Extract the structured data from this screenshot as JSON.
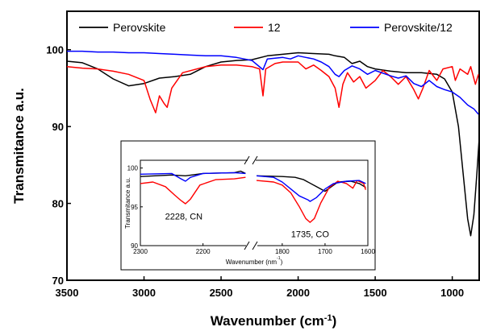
{
  "chart_data": [
    {
      "type": "line",
      "xlabel": "Wavenumber (cm⁻¹)",
      "ylabel": "Transmitance a.u.",
      "xlim": [
        3500,
        820
      ],
      "ylim": [
        70,
        105
      ],
      "xticks": [
        3500,
        3000,
        2500,
        2000,
        1500,
        1000
      ],
      "yticks": [
        70,
        80,
        90,
        100
      ],
      "legend_position": "top",
      "series": [
        {
          "name": "Perovskite",
          "color": "#000000",
          "points": [
            [
              3500,
              98.5
            ],
            [
              3400,
              98.3
            ],
            [
              3300,
              97.5
            ],
            [
              3200,
              96.2
            ],
            [
              3100,
              95.3
            ],
            [
              3000,
              95.6
            ],
            [
              2900,
              96.3
            ],
            [
              2800,
              96.5
            ],
            [
              2700,
              96.8
            ],
            [
              2600,
              97.8
            ],
            [
              2500,
              98.4
            ],
            [
              2400,
              98.6
            ],
            [
              2300,
              98.7
            ],
            [
              2200,
              99.2
            ],
            [
              2100,
              99.4
            ],
            [
              2000,
              99.6
            ],
            [
              1900,
              99.5
            ],
            [
              1800,
              99.4
            ],
            [
              1760,
              99.2
            ],
            [
              1700,
              99.0
            ],
            [
              1650,
              98.2
            ],
            [
              1600,
              98.5
            ],
            [
              1550,
              97.8
            ],
            [
              1500,
              97.5
            ],
            [
              1400,
              97.2
            ],
            [
              1300,
              97.0
            ],
            [
              1200,
              97.0
            ],
            [
              1100,
              96.8
            ],
            [
              1050,
              96.2
            ],
            [
              1000,
              94.5
            ],
            [
              960,
              90.0
            ],
            [
              930,
              84.0
            ],
            [
              900,
              78.0
            ],
            [
              880,
              75.8
            ],
            [
              860,
              78.5
            ],
            [
              840,
              84.0
            ],
            [
              825,
              88.5
            ]
          ]
        },
        {
          "name": "12",
          "color": "#ff0000",
          "points": [
            [
              3500,
              97.8
            ],
            [
              3400,
              97.6
            ],
            [
              3300,
              97.5
            ],
            [
              3200,
              97.2
            ],
            [
              3100,
              96.8
            ],
            [
              3000,
              96.0
            ],
            [
              2960,
              93.5
            ],
            [
              2925,
              91.8
            ],
            [
              2900,
              94.0
            ],
            [
              2870,
              93.0
            ],
            [
              2850,
              92.5
            ],
            [
              2820,
              95.0
            ],
            [
              2750,
              97.0
            ],
            [
              2600,
              97.8
            ],
            [
              2500,
              98.0
            ],
            [
              2400,
              98.0
            ],
            [
              2300,
              97.8
            ],
            [
              2250,
              97.5
            ],
            [
              2228,
              94.0
            ],
            [
              2210,
              97.5
            ],
            [
              2150,
              98.2
            ],
            [
              2100,
              98.4
            ],
            [
              2000,
              98.4
            ],
            [
              1950,
              97.5
            ],
            [
              1900,
              98.0
            ],
            [
              1850,
              97.3
            ],
            [
              1800,
              96.5
            ],
            [
              1760,
              95.0
            ],
            [
              1735,
              92.5
            ],
            [
              1710,
              95.5
            ],
            [
              1680,
              97.0
            ],
            [
              1640,
              95.8
            ],
            [
              1600,
              96.5
            ],
            [
              1560,
              95.0
            ],
            [
              1500,
              96.0
            ],
            [
              1450,
              97.3
            ],
            [
              1400,
              96.5
            ],
            [
              1350,
              95.5
            ],
            [
              1300,
              96.5
            ],
            [
              1250,
              94.8
            ],
            [
              1220,
              93.6
            ],
            [
              1190,
              95.0
            ],
            [
              1150,
              97.3
            ],
            [
              1100,
              96.0
            ],
            [
              1060,
              97.5
            ],
            [
              1000,
              97.8
            ],
            [
              980,
              96.0
            ],
            [
              950,
              97.5
            ],
            [
              900,
              96.8
            ],
            [
              880,
              97.8
            ],
            [
              850,
              95.5
            ],
            [
              830,
              96.8
            ]
          ]
        },
        {
          "name": "Perovskite/12",
          "color": "#0000ff",
          "points": [
            [
              3500,
              99.8
            ],
            [
              3400,
              99.8
            ],
            [
              3300,
              99.7
            ],
            [
              3200,
              99.7
            ],
            [
              3100,
              99.6
            ],
            [
              3000,
              99.6
            ],
            [
              2900,
              99.5
            ],
            [
              2800,
              99.4
            ],
            [
              2700,
              99.3
            ],
            [
              2600,
              99.2
            ],
            [
              2500,
              99.2
            ],
            [
              2400,
              99.0
            ],
            [
              2350,
              98.8
            ],
            [
              2300,
              98.6
            ],
            [
              2228,
              97.4
            ],
            [
              2200,
              98.8
            ],
            [
              2100,
              99.0
            ],
            [
              2050,
              98.8
            ],
            [
              2000,
              99.2
            ],
            [
              1950,
              99.0
            ],
            [
              1900,
              98.8
            ],
            [
              1850,
              98.4
            ],
            [
              1800,
              97.8
            ],
            [
              1760,
              96.8
            ],
            [
              1735,
              96.5
            ],
            [
              1700,
              97.3
            ],
            [
              1650,
              97.9
            ],
            [
              1600,
              97.5
            ],
            [
              1550,
              96.8
            ],
            [
              1500,
              97.3
            ],
            [
              1400,
              96.6
            ],
            [
              1350,
              96.3
            ],
            [
              1300,
              96.6
            ],
            [
              1250,
              95.6
            ],
            [
              1200,
              95.2
            ],
            [
              1150,
              96.0
            ],
            [
              1100,
              95.2
            ],
            [
              1050,
              94.8
            ],
            [
              1000,
              94.5
            ],
            [
              950,
              93.8
            ],
            [
              900,
              92.8
            ],
            [
              860,
              92.3
            ],
            [
              830,
              91.6
            ]
          ]
        }
      ]
    },
    {
      "type": "line",
      "xlabel": "Wavenumber (nm⁻¹)",
      "ylabel": "Transmitance a.u.",
      "ylim": [
        90,
        101
      ],
      "x_segments": [
        {
          "xlim": [
            2300,
            2130
          ],
          "xticks": [
            2300,
            2200
          ]
        },
        {
          "xlim": [
            1860,
            1600
          ],
          "xticks": [
            1800,
            1700,
            1600
          ]
        }
      ],
      "yticks": [
        90,
        95,
        100
      ],
      "annotations": [
        {
          "text": "2228, CN",
          "x": 2228,
          "y": 93.8
        },
        {
          "text": "1735, CO",
          "x": 1735,
          "y": 91.5
        }
      ],
      "series": [
        {
          "name": "Perovskite",
          "color": "#000000",
          "points": [
            [
              2300,
              98.9
            ],
            [
              2250,
              99.1
            ],
            [
              2228,
              99.0
            ],
            [
              2200,
              99.3
            ],
            [
              2150,
              99.4
            ],
            [
              2140,
              99.6
            ],
            [
              2132,
              99.3
            ],
            [
              1860,
              99.0
            ],
            [
              1800,
              98.9
            ],
            [
              1770,
              98.8
            ],
            [
              1750,
              98.5
            ],
            [
              1720,
              97.6
            ],
            [
              1700,
              97.0
            ],
            [
              1690,
              97.4
            ],
            [
              1670,
              98.2
            ],
            [
              1640,
              98.3
            ],
            [
              1620,
              98.0
            ],
            [
              1605,
              97.5
            ]
          ]
        },
        {
          "name": "12",
          "color": "#ff0000",
          "points": [
            [
              2300,
              98.0
            ],
            [
              2280,
              98.2
            ],
            [
              2260,
              97.6
            ],
            [
              2245,
              96.5
            ],
            [
              2235,
              95.8
            ],
            [
              2228,
              95.4
            ],
            [
              2220,
              96.0
            ],
            [
              2205,
              97.8
            ],
            [
              2180,
              98.5
            ],
            [
              2150,
              98.6
            ],
            [
              2132,
              98.8
            ],
            [
              1860,
              98.4
            ],
            [
              1820,
              98.2
            ],
            [
              1800,
              97.8
            ],
            [
              1780,
              96.8
            ],
            [
              1760,
              95.0
            ],
            [
              1745,
              93.5
            ],
            [
              1735,
              93.0
            ],
            [
              1725,
              93.5
            ],
            [
              1710,
              95.5
            ],
            [
              1690,
              97.5
            ],
            [
              1670,
              98.3
            ],
            [
              1650,
              98.0
            ],
            [
              1635,
              97.4
            ],
            [
              1625,
              98.4
            ],
            [
              1610,
              98.0
            ],
            [
              1605,
              97.2
            ]
          ]
        },
        {
          "name": "Perovskite/12",
          "color": "#0000ff",
          "points": [
            [
              2300,
              99.2
            ],
            [
              2250,
              99.3
            ],
            [
              2235,
              98.6
            ],
            [
              2228,
              98.3
            ],
            [
              2220,
              98.8
            ],
            [
              2200,
              99.3
            ],
            [
              2150,
              99.4
            ],
            [
              2132,
              99.3
            ],
            [
              1860,
              99.0
            ],
            [
              1820,
              98.8
            ],
            [
              1800,
              98.2
            ],
            [
              1780,
              97.3
            ],
            [
              1760,
              96.4
            ],
            [
              1740,
              95.9
            ],
            [
              1735,
              95.7
            ],
            [
              1720,
              96.2
            ],
            [
              1700,
              97.3
            ],
            [
              1680,
              98.0
            ],
            [
              1650,
              98.3
            ],
            [
              1620,
              98.4
            ],
            [
              1605,
              98.0
            ]
          ]
        }
      ]
    }
  ]
}
